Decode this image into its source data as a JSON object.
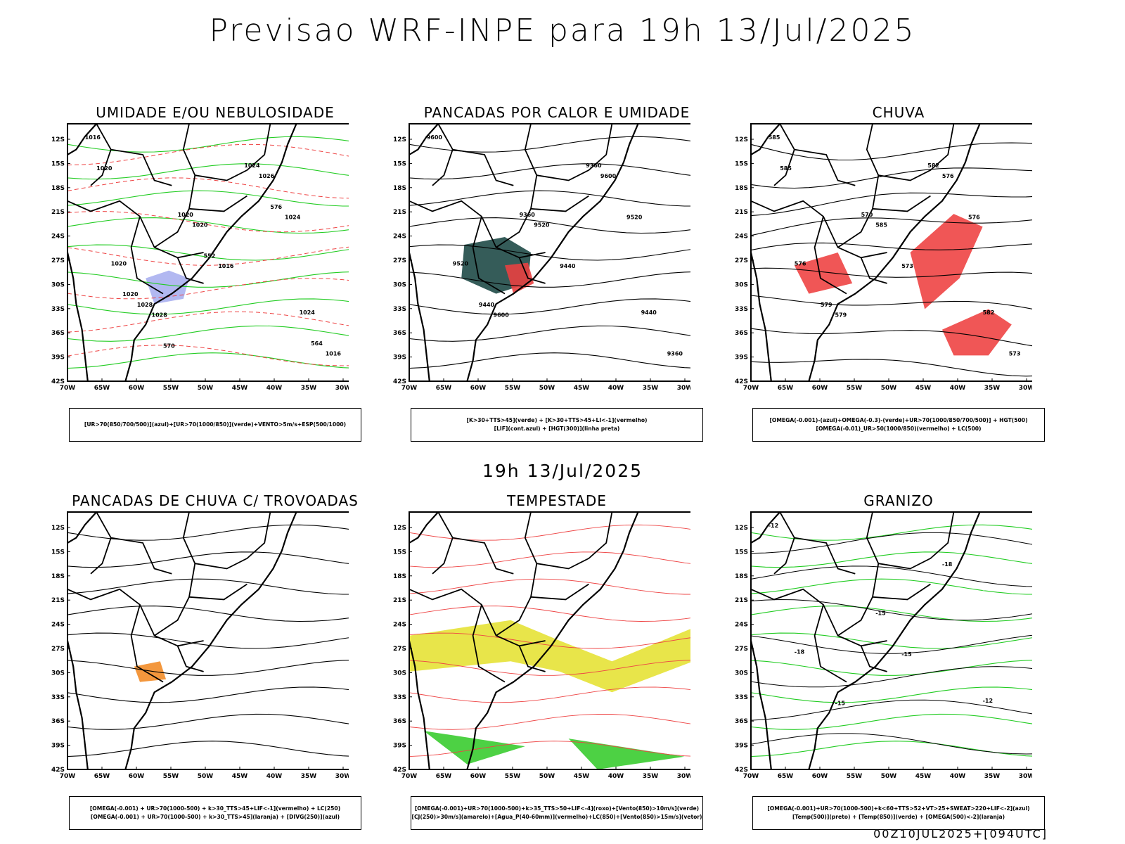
{
  "title": "Previsao WRF-INPE  para 19h 13/Jul/2025",
  "subtitle": "19h 13/Jul/2025",
  "footer": "00Z10JUL2025+[094UTC]",
  "y_ticks": [
    "12S",
    "15S",
    "18S",
    "21S",
    "24S",
    "27S",
    "30S",
    "33S",
    "36S",
    "39S",
    "42S"
  ],
  "x_ticks": [
    "70W",
    "65W",
    "60W",
    "55W",
    "50W",
    "45W",
    "40W",
    "35W",
    "30W"
  ],
  "panels": [
    {
      "title": "UMIDADE E/OU NEBULOSIDADE",
      "legend": [
        "[UR>70(850/700/500)](azul)+[UR>70(1000/850)](verde)+VENTO>5m/s+ESP(500/1000)"
      ],
      "labels": [
        "1016",
        "1020",
        "1024",
        "1028",
        "1026",
        "1020",
        "1016",
        "1016",
        "1020",
        "1024",
        "1028",
        "1024",
        "1020",
        "552",
        "564",
        "570",
        "576",
        "1020"
      ]
    },
    {
      "title": "PANCADAS POR CALOR E UMIDADE",
      "legend": [
        "[K>30+TTS>45](verde) + [K>30+TTS>45+LI<-1](vermelho)",
        "[LIF](cont.azul) + [HGT(300)](linha preta)"
      ],
      "labels": [
        "9600",
        "9520",
        "9440",
        "9600",
        "9600",
        "9520",
        "9440",
        "9360",
        "9360",
        "9520",
        "9440",
        "9360"
      ]
    },
    {
      "title": "CHUVA",
      "legend": [
        "[OMEGA(-0.001)-(azul)+OMEGA(-0.3)-(verde)+UR>70(1000/850/700/500)] + HGT(500)",
        "[OMEGA(-0.01)_UR>50(1000/850)(vermelho) + LC(500)"
      ],
      "labels": [
        "585",
        "585",
        "582",
        "579",
        "576",
        "576",
        "573",
        "573",
        "570",
        "576",
        "579",
        "582",
        "585"
      ]
    },
    {
      "title": "PANCADAS DE CHUVA C/ TROVOADAS",
      "legend": [
        "[OMEGA(-0.001) + UR>70(1000-500) + k>30_TTS>45+LIF<-1](vermelho) + LC(250)",
        "[OMEGA(-0.001) + UR>70(1000-500) + k>30_TTS>45](laranja) + [DIVG(250)](azul)"
      ],
      "labels": []
    },
    {
      "title": "TEMPESTADE",
      "legend": [
        "[OMEGA(-0.001)+UR>70(1000-500)+k>35_TTS>50+LIF<-4](roxo)+[Vento(850)>10m/s](verde)",
        "[CJ(250)>30m/s](amarelo)+[Agua_P(40-60mm)](vermelho)+LC(850)+[Vento(850)>15m/s](vetor)"
      ],
      "labels": []
    },
    {
      "title": "GRANIZO",
      "legend": [
        "[OMEGA(-0.001)+UR>70(1000-500)+k<60+TTS>52+VT>25+SWEAT>220+LIF<-2](azul)",
        "[Temp(500)](preto) + [Temp(850)](verde) + [OMEGA(500)<-2](laranja)"
      ],
      "labels": [
        "-12",
        "-15",
        "-12",
        "-15",
        "-18",
        "-18",
        "-15"
      ]
    }
  ]
}
